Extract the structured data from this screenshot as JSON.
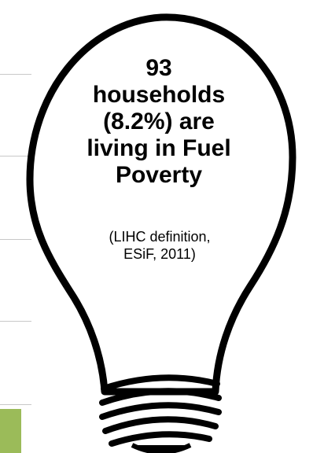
{
  "headline": {
    "line1": "93",
    "line2": "households",
    "line3": "(8.2%) are",
    "line4": "living in Fuel",
    "line5": "Poverty"
  },
  "note": {
    "line1": "(LIHC definition,",
    "line2": "ESiF, 2011)"
  },
  "colors": {
    "bulb_stroke": "#000000",
    "bulb_fill": "#ffffff",
    "accent_green": "#9bbb59",
    "guide_line": "#c8c8c8"
  },
  "icons": {
    "bulb": "light-bulb-icon"
  }
}
